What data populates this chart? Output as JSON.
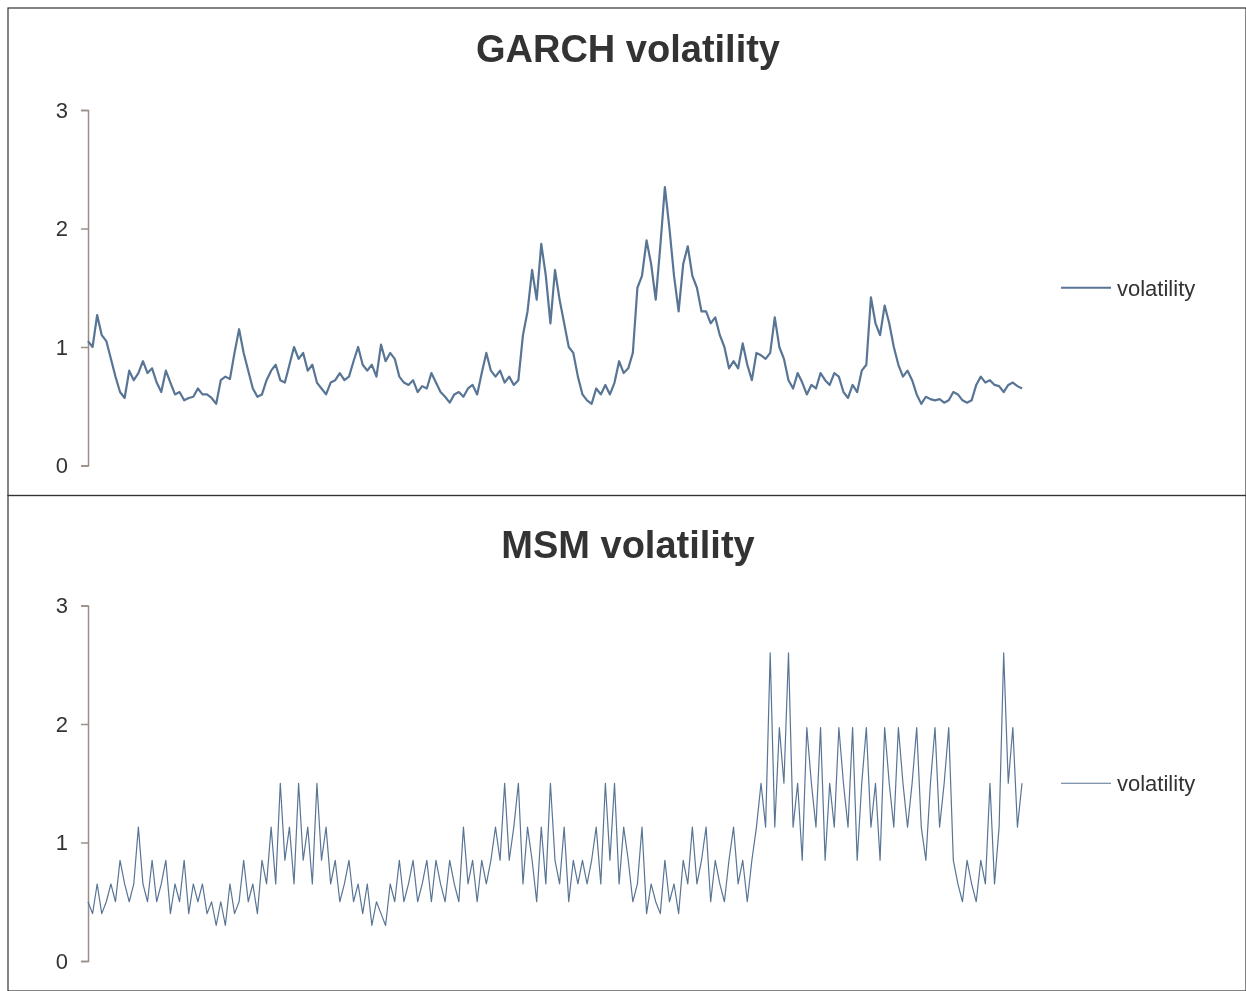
{
  "chart_data": [
    {
      "type": "line",
      "title": "GARCH volatility",
      "ylim": [
        0,
        3
      ],
      "yticks": [
        0,
        1,
        2,
        3
      ],
      "legend": "right",
      "categories": [
        null,
        null,
        null,
        null,
        null,
        null,
        null,
        null,
        null,
        null,
        null,
        null,
        null,
        null,
        null,
        null,
        null,
        null,
        null,
        null,
        null,
        null,
        null,
        null,
        null,
        null,
        null,
        null,
        null,
        null,
        null,
        null,
        null,
        null,
        null,
        null,
        null,
        null,
        null,
        null,
        null,
        null,
        null,
        null,
        null,
        null,
        null,
        null,
        null,
        null,
        null,
        null,
        null,
        null,
        null,
        null,
        null,
        null,
        null,
        null,
        null,
        null,
        null,
        null,
        null,
        null,
        null,
        null,
        null,
        null,
        null,
        null,
        null,
        null,
        null,
        null,
        null,
        null,
        null,
        null,
        null,
        null,
        null,
        null,
        null,
        null,
        null,
        null,
        null,
        null,
        null,
        null,
        null,
        null,
        null,
        null,
        null,
        null,
        null,
        null,
        null,
        null,
        null,
        null,
        null,
        null,
        null,
        null,
        null,
        null,
        null,
        null,
        null,
        null,
        null,
        null,
        null,
        null,
        null,
        null,
        null,
        null,
        null,
        null,
        null,
        null,
        null,
        null,
        null,
        null,
        null,
        null,
        null,
        null,
        null,
        null,
        null,
        null,
        null,
        null,
        null,
        null,
        null,
        null,
        null,
        null,
        null,
        null,
        null,
        null,
        null,
        null,
        null,
        null,
        null,
        null,
        null,
        null,
        null,
        null,
        null,
        null,
        null,
        null,
        null,
        null,
        null,
        null,
        null,
        null,
        null,
        null,
        null,
        null,
        null,
        null,
        null,
        null,
        null,
        null,
        null,
        null,
        null,
        null,
        null,
        null,
        null,
        null,
        null,
        null,
        null,
        null,
        null,
        null,
        null,
        null,
        null,
        null,
        null,
        null,
        null,
        null,
        null,
        null,
        null
      ],
      "series": [
        {
          "name": "volatility",
          "color": "#587595",
          "values": [
            1.05,
            1.0,
            1.27,
            1.1,
            1.05,
            0.9,
            0.75,
            0.62,
            0.57,
            0.8,
            0.72,
            0.78,
            0.88,
            0.78,
            0.82,
            0.7,
            0.62,
            0.8,
            0.7,
            0.6,
            0.62,
            0.55,
            0.57,
            0.58,
            0.65,
            0.6,
            0.6,
            0.57,
            0.52,
            0.72,
            0.75,
            0.73,
            0.95,
            1.15,
            0.95,
            0.8,
            0.65,
            0.58,
            0.6,
            0.72,
            0.8,
            0.85,
            0.72,
            0.7,
            0.85,
            1.0,
            0.9,
            0.95,
            0.8,
            0.85,
            0.7,
            0.65,
            0.6,
            0.7,
            0.72,
            0.78,
            0.72,
            0.75,
            0.88,
            1.0,
            0.85,
            0.8,
            0.85,
            0.75,
            1.02,
            0.88,
            0.95,
            0.9,
            0.75,
            0.7,
            0.68,
            0.72,
            0.62,
            0.67,
            0.65,
            0.78,
            0.7,
            0.62,
            0.58,
            0.53,
            0.6,
            0.62,
            0.58,
            0.65,
            0.68,
            0.6,
            0.78,
            0.95,
            0.8,
            0.75,
            0.8,
            0.7,
            0.75,
            0.68,
            0.72,
            1.1,
            1.3,
            1.65,
            1.4,
            1.87,
            1.6,
            1.2,
            1.65,
            1.4,
            1.2,
            1.0,
            0.95,
            0.75,
            0.6,
            0.55,
            0.52,
            0.65,
            0.6,
            0.68,
            0.6,
            0.7,
            0.88,
            0.78,
            0.82,
            0.95,
            1.5,
            1.6,
            1.9,
            1.7,
            1.4,
            1.85,
            2.35,
            2.0,
            1.6,
            1.3,
            1.7,
            1.85,
            1.6,
            1.5,
            1.3,
            1.3,
            1.2,
            1.25,
            1.1,
            1.0,
            0.82,
            0.88,
            0.82,
            1.03,
            0.85,
            0.72,
            0.95,
            0.93,
            0.9,
            0.95,
            1.25,
            1.0,
            0.9,
            0.72,
            0.65,
            0.78,
            0.7,
            0.6,
            0.68,
            0.65,
            0.78,
            0.72,
            0.68,
            0.78,
            0.75,
            0.62,
            0.57,
            0.68,
            0.62,
            0.8,
            0.85,
            1.42,
            1.2,
            1.1,
            1.35,
            1.2,
            1.0,
            0.85,
            0.75,
            0.8,
            0.72,
            0.6,
            0.52,
            0.58,
            0.56,
            0.55,
            0.56,
            0.53,
            0.55,
            0.62,
            0.6,
            0.55,
            0.53,
            0.55,
            0.68,
            0.75,
            0.7,
            0.72,
            0.68,
            0.67,
            0.62,
            0.68,
            0.7,
            0.67,
            0.65
          ]
        }
      ]
    },
    {
      "type": "line",
      "title": "MSM volatility",
      "ylim": [
        0,
        3
      ],
      "yticks": [
        0,
        1,
        2,
        3
      ],
      "legend": "right",
      "categories": [
        null,
        null,
        null,
        null,
        null,
        null,
        null,
        null,
        null,
        null,
        null,
        null,
        null,
        null,
        null,
        null,
        null,
        null,
        null,
        null,
        null,
        null,
        null,
        null,
        null,
        null,
        null,
        null,
        null,
        null,
        null,
        null,
        null,
        null,
        null,
        null,
        null,
        null,
        null,
        null,
        null,
        null,
        null,
        null,
        null,
        null,
        null,
        null,
        null,
        null,
        null,
        null,
        null,
        null,
        null,
        null,
        null,
        null,
        null,
        null,
        null,
        null,
        null,
        null,
        null,
        null,
        null,
        null,
        null,
        null,
        null,
        null,
        null,
        null,
        null,
        null,
        null,
        null,
        null,
        null,
        null,
        null,
        null,
        null,
        null,
        null,
        null,
        null,
        null,
        null,
        null,
        null,
        null,
        null,
        null,
        null,
        null,
        null,
        null,
        null,
        null,
        null,
        null,
        null,
        null,
        null,
        null,
        null,
        null,
        null,
        null,
        null,
        null,
        null,
        null,
        null,
        null,
        null,
        null,
        null,
        null,
        null,
        null,
        null,
        null,
        null,
        null,
        null,
        null,
        null,
        null,
        null,
        null,
        null,
        null,
        null,
        null,
        null,
        null,
        null,
        null,
        null,
        null,
        null,
        null,
        null,
        null,
        null,
        null,
        null,
        null,
        null,
        null,
        null,
        null,
        null,
        null,
        null,
        null,
        null,
        null,
        null,
        null,
        null,
        null,
        null,
        null,
        null,
        null,
        null,
        null,
        null,
        null,
        null,
        null,
        null,
        null,
        null,
        null,
        null,
        null,
        null,
        null,
        null,
        null,
        null,
        null,
        null,
        null,
        null,
        null,
        null,
        null,
        null,
        null,
        null,
        null,
        null,
        null,
        null,
        null,
        null,
        null,
        null,
        null
      ],
      "series": [
        {
          "name": "volatility",
          "color": "#587595",
          "values": [
            0.5,
            0.4,
            0.65,
            0.4,
            0.5,
            0.65,
            0.5,
            0.85,
            0.65,
            0.5,
            0.65,
            1.13,
            0.65,
            0.5,
            0.85,
            0.5,
            0.65,
            0.85,
            0.4,
            0.65,
            0.5,
            0.85,
            0.4,
            0.65,
            0.5,
            0.65,
            0.4,
            0.5,
            0.3,
            0.5,
            0.3,
            0.65,
            0.4,
            0.5,
            0.85,
            0.5,
            0.65,
            0.4,
            0.85,
            0.65,
            1.13,
            0.65,
            1.5,
            0.85,
            1.13,
            0.65,
            1.5,
            0.85,
            1.13,
            0.65,
            1.5,
            0.85,
            1.13,
            0.65,
            0.85,
            0.5,
            0.65,
            0.85,
            0.5,
            0.65,
            0.4,
            0.65,
            0.3,
            0.5,
            0.4,
            0.3,
            0.65,
            0.5,
            0.85,
            0.5,
            0.65,
            0.85,
            0.5,
            0.65,
            0.85,
            0.5,
            0.85,
            0.65,
            0.5,
            0.85,
            0.65,
            0.5,
            1.13,
            0.65,
            0.85,
            0.5,
            0.85,
            0.65,
            0.85,
            1.13,
            0.85,
            1.5,
            0.85,
            1.13,
            1.5,
            0.65,
            1.13,
            0.85,
            0.5,
            1.13,
            0.65,
            1.5,
            0.85,
            0.65,
            1.13,
            0.5,
            0.85,
            0.65,
            0.85,
            0.65,
            0.85,
            1.13,
            0.65,
            1.5,
            0.85,
            1.5,
            0.65,
            1.13,
            0.85,
            0.5,
            0.65,
            1.13,
            0.4,
            0.65,
            0.5,
            0.4,
            0.85,
            0.5,
            0.65,
            0.4,
            0.85,
            0.65,
            1.13,
            0.65,
            0.85,
            1.13,
            0.5,
            0.85,
            0.65,
            0.5,
            0.85,
            1.13,
            0.65,
            0.85,
            0.5,
            0.85,
            1.13,
            1.5,
            1.13,
            2.6,
            1.13,
            1.97,
            1.5,
            2.6,
            1.13,
            1.5,
            0.85,
            1.97,
            1.5,
            1.13,
            1.97,
            0.85,
            1.5,
            1.13,
            1.97,
            1.5,
            1.13,
            1.97,
            0.85,
            1.5,
            1.97,
            1.13,
            1.5,
            0.85,
            1.97,
            1.5,
            1.13,
            1.97,
            1.5,
            1.13,
            1.5,
            1.97,
            1.13,
            0.85,
            1.5,
            1.97,
            1.13,
            1.5,
            1.97,
            0.85,
            0.65,
            0.5,
            0.85,
            0.65,
            0.5,
            0.85,
            0.65,
            1.5,
            0.65,
            1.13,
            2.6,
            1.5,
            1.97,
            1.13,
            1.5
          ]
        }
      ]
    }
  ]
}
